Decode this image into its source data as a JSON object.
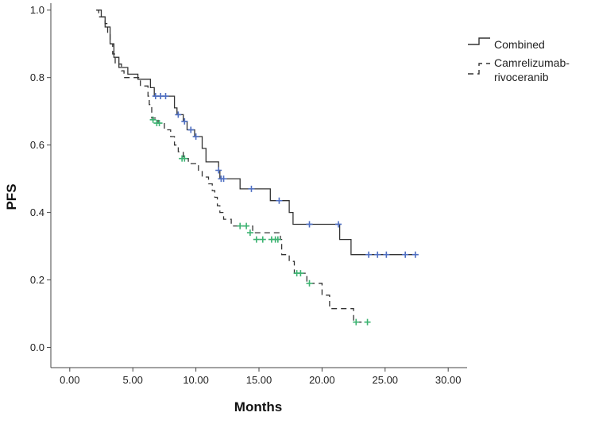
{
  "chart_data": {
    "type": "line",
    "subtype": "kaplan-meier-step",
    "title": "",
    "xlabel": "Months",
    "ylabel": "PFS",
    "xlim": [
      -1.5,
      31.5
    ],
    "ylim": [
      -0.06,
      1.03
    ],
    "xticks": [
      0,
      5,
      10,
      15,
      20,
      25,
      30
    ],
    "xtick_labels": [
      "0.00",
      "5.00",
      "10.00",
      "15.00",
      "20.00",
      "25.00",
      "30.00"
    ],
    "yticks": [
      0.0,
      0.2,
      0.4,
      0.6,
      0.8,
      1.0
    ],
    "ytick_labels": [
      "0.0",
      "0.2",
      "0.4",
      "0.6",
      "0.8",
      "1.0"
    ],
    "grid": false,
    "legend_position": "top-right",
    "series": [
      {
        "name": "Combined",
        "line_style": "solid",
        "line_color": "#333333",
        "censor_color": "#4f6fc2",
        "steps": [
          [
            2.1,
            1.0
          ],
          [
            2.5,
            0.98
          ],
          [
            2.8,
            0.95
          ],
          [
            3.2,
            0.9
          ],
          [
            3.5,
            0.86
          ],
          [
            3.9,
            0.83
          ],
          [
            4.6,
            0.81
          ],
          [
            5.4,
            0.795
          ],
          [
            6.4,
            0.77
          ],
          [
            6.7,
            0.745
          ],
          [
            8.3,
            0.71
          ],
          [
            8.5,
            0.69
          ],
          [
            9.0,
            0.67
          ],
          [
            9.3,
            0.645
          ],
          [
            9.9,
            0.625
          ],
          [
            10.5,
            0.59
          ],
          [
            10.8,
            0.55
          ],
          [
            11.8,
            0.525
          ],
          [
            11.9,
            0.5
          ],
          [
            13.5,
            0.47
          ],
          [
            15.9,
            0.435
          ],
          [
            17.4,
            0.4
          ],
          [
            17.7,
            0.365
          ],
          [
            21.4,
            0.32
          ],
          [
            22.3,
            0.275
          ],
          [
            27.5,
            0.275
          ]
        ],
        "censored": [
          [
            6.8,
            0.745
          ],
          [
            7.2,
            0.745
          ],
          [
            7.6,
            0.745
          ],
          [
            8.6,
            0.69
          ],
          [
            9.1,
            0.67
          ],
          [
            9.6,
            0.645
          ],
          [
            10.0,
            0.625
          ],
          [
            11.8,
            0.525
          ],
          [
            12.0,
            0.5
          ],
          [
            12.2,
            0.5
          ],
          [
            14.4,
            0.47
          ],
          [
            16.6,
            0.435
          ],
          [
            19.0,
            0.365
          ],
          [
            21.3,
            0.365
          ],
          [
            23.7,
            0.275
          ],
          [
            24.4,
            0.275
          ],
          [
            25.1,
            0.275
          ],
          [
            26.6,
            0.275
          ],
          [
            27.4,
            0.275
          ]
        ]
      },
      {
        "name": "Camrelizumab-rivoceranib",
        "line_style": "dashed",
        "line_color": "#333333",
        "censor_color": "#3cb371",
        "steps": [
          [
            2.1,
            1.0
          ],
          [
            2.3,
            0.98
          ],
          [
            2.8,
            0.96
          ],
          [
            3.0,
            0.93
          ],
          [
            3.2,
            0.9
          ],
          [
            3.4,
            0.87
          ],
          [
            3.6,
            0.84
          ],
          [
            4.1,
            0.82
          ],
          [
            4.3,
            0.8
          ],
          [
            5.6,
            0.775
          ],
          [
            6.2,
            0.745
          ],
          [
            6.3,
            0.72
          ],
          [
            6.5,
            0.68
          ],
          [
            7.0,
            0.665
          ],
          [
            7.5,
            0.645
          ],
          [
            8.0,
            0.625
          ],
          [
            8.3,
            0.6
          ],
          [
            8.6,
            0.58
          ],
          [
            9.0,
            0.56
          ],
          [
            9.4,
            0.545
          ],
          [
            10.2,
            0.525
          ],
          [
            10.5,
            0.505
          ],
          [
            11.0,
            0.485
          ],
          [
            11.3,
            0.465
          ],
          [
            11.5,
            0.445
          ],
          [
            11.7,
            0.42
          ],
          [
            11.9,
            0.4
          ],
          [
            12.2,
            0.38
          ],
          [
            12.8,
            0.36
          ],
          [
            14.5,
            0.34
          ],
          [
            16.7,
            0.32
          ],
          [
            16.8,
            0.275
          ],
          [
            17.4,
            0.255
          ],
          [
            17.8,
            0.22
          ],
          [
            18.8,
            0.19
          ],
          [
            20.0,
            0.155
          ],
          [
            20.6,
            0.115
          ],
          [
            22.5,
            0.075
          ],
          [
            23.7,
            0.075
          ]
        ],
        "censored": [
          [
            6.6,
            0.675
          ],
          [
            6.9,
            0.665
          ],
          [
            7.1,
            0.665
          ],
          [
            8.9,
            0.56
          ],
          [
            9.1,
            0.56
          ],
          [
            13.5,
            0.36
          ],
          [
            14.0,
            0.36
          ],
          [
            14.3,
            0.34
          ],
          [
            14.8,
            0.32
          ],
          [
            15.3,
            0.32
          ],
          [
            16.0,
            0.32
          ],
          [
            16.3,
            0.32
          ],
          [
            16.5,
            0.32
          ],
          [
            18.0,
            0.22
          ],
          [
            18.3,
            0.22
          ],
          [
            19.0,
            0.19
          ],
          [
            22.7,
            0.075
          ],
          [
            23.6,
            0.075
          ]
        ]
      }
    ]
  },
  "legend": {
    "items": [
      {
        "label_lines": [
          "Combined"
        ]
      },
      {
        "label_lines": [
          "Camrelizumab-",
          "rivoceranib"
        ]
      }
    ]
  }
}
